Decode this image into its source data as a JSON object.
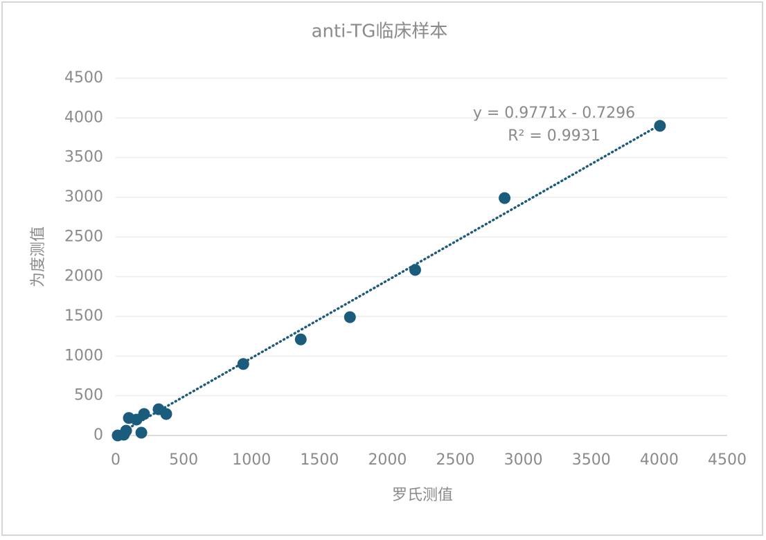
{
  "chart_data": {
    "type": "scatter",
    "title": "anti-TG临床样本",
    "x_label": "罗氏测值",
    "y_label": "为度测值",
    "series": [
      {
        "color": "#1b5b7c",
        "x": [
          15,
          60,
          77,
          97,
          153,
          189,
          209,
          316,
          372,
          939,
          1362,
          1724,
          2204,
          2862,
          4005
        ],
        "values": [
          0,
          10,
          60,
          220,
          200,
          35,
          270,
          330,
          270,
          900,
          1210,
          1490,
          2085,
          2990,
          3900
        ]
      }
    ],
    "trendline": {
      "slope": 0.9771,
      "intercept": -0.7296,
      "equation": "y = 0.9771x - 0.7296",
      "r2": "R² = 0.9931"
    },
    "xlim": [
      0,
      4500
    ],
    "xticks": [
      0,
      500,
      1000,
      1500,
      2000,
      2500,
      3000,
      3500,
      4000,
      4500
    ],
    "ylim": [
      0,
      4500
    ],
    "yticks": [
      0,
      500,
      1000,
      1500,
      2000,
      2500,
      3000,
      3500,
      4000,
      4500
    ],
    "grid": true
  }
}
